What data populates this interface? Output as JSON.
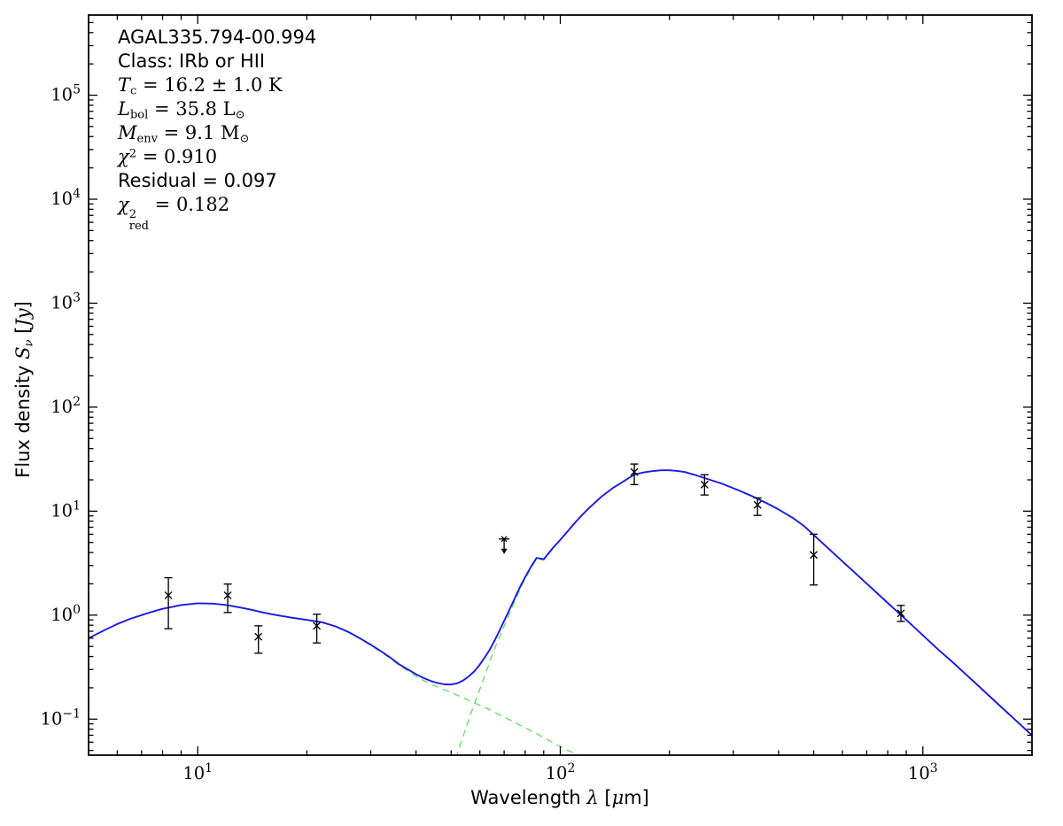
{
  "figure": {
    "background": "#ffffff",
    "frame_color": "#000000",
    "annotation_lines": [
      [
        {
          "t": "AGAL335.794-00.994",
          "c": "sans"
        }
      ],
      [
        {
          "t": "Class: IRb or HII",
          "c": "sans"
        }
      ],
      [
        {
          "t": "T",
          "c": "mi"
        },
        {
          "t": "c",
          "c": "msub"
        },
        {
          "t": " = 16.2 ± 1.0 K",
          "c": "mr"
        }
      ],
      [
        {
          "t": "L",
          "c": "mi"
        },
        {
          "t": "bol",
          "c": "msub"
        },
        {
          "t": " = 35.8 L",
          "c": "mr"
        },
        {
          "t": "⊙",
          "c": "msub"
        }
      ],
      [
        {
          "t": "M",
          "c": "mi"
        },
        {
          "t": "env",
          "c": "msub"
        },
        {
          "t": " = 9.1 M",
          "c": "mr"
        },
        {
          "t": "⊙",
          "c": "msub"
        }
      ],
      [
        {
          "t": "χ",
          "c": "mi"
        },
        {
          "t": "2",
          "c": "msup"
        },
        {
          "t": " = 0.910",
          "c": "mr"
        }
      ],
      [
        {
          "t": "Residual = 0.097",
          "c": "sans"
        }
      ],
      [
        {
          "t": "χ",
          "c": "mi"
        },
        {
          "sup": "2",
          "sub": "red",
          "c": "mstack"
        },
        {
          "t": " = 0.182",
          "c": "mr"
        }
      ]
    ],
    "x_axis": {
      "label_parts": [
        {
          "t": "Wavelength ",
          "c": "sans"
        },
        {
          "t": "λ",
          "c": "mi"
        },
        {
          "t": " [",
          "c": "sans"
        },
        {
          "t": "μ",
          "c": "mi"
        },
        {
          "t": "m]",
          "c": "sans"
        }
      ],
      "major_tick_exponents": [
        1,
        2,
        3
      ]
    },
    "y_axis": {
      "label_parts": [
        {
          "t": "Flux density ",
          "c": "sans"
        },
        {
          "t": "S",
          "c": "mi"
        },
        {
          "t": "ν",
          "c": "msubi"
        },
        {
          "t": " [",
          "c": "sans"
        },
        {
          "t": "Jy",
          "c": "mi"
        },
        {
          "t": "]",
          "c": "sans"
        }
      ],
      "major_tick_exponents": [
        -1,
        0,
        1,
        2,
        3,
        4,
        5
      ]
    }
  },
  "chart_data": {
    "type": "line",
    "title": "AGAL335.794-00.994",
    "xlabel": "Wavelength λ [μm]",
    "ylabel": "Flux density S_ν [Jy]",
    "xscale": "log",
    "yscale": "log",
    "xlim": [
      5,
      2000
    ],
    "ylim": [
      0.045,
      590000
    ],
    "grid": false,
    "legend": false,
    "annotations": [
      "AGAL335.794-00.994",
      "Class: IRb or HII",
      "T_c = 16.2 ± 1.0 K",
      "L_bol = 35.8 L⊙",
      "M_env = 9.1 M⊙",
      "χ² = 0.910",
      "Residual = 0.097",
      "χ²_red = 0.182"
    ],
    "series": [
      {
        "name": "warm-component-fit",
        "color": "#5ce05c",
        "style": "dashed",
        "width": 1.3,
        "points": [
          [
            5,
            0.6
          ],
          [
            5.5,
            0.71
          ],
          [
            6,
            0.82
          ],
          [
            6.5,
            0.92
          ],
          [
            7,
            1.0
          ],
          [
            7.5,
            1.08
          ],
          [
            8,
            1.15
          ],
          [
            9,
            1.25
          ],
          [
            10,
            1.295
          ],
          [
            11,
            1.285
          ],
          [
            12,
            1.245
          ],
          [
            13,
            1.185
          ],
          [
            14,
            1.125
          ],
          [
            15,
            1.065
          ],
          [
            16,
            1.015
          ],
          [
            18,
            0.945
          ],
          [
            20,
            0.893
          ],
          [
            22,
            0.848
          ],
          [
            24,
            0.773
          ],
          [
            26,
            0.682
          ],
          [
            28,
            0.592
          ],
          [
            30,
            0.512
          ],
          [
            32,
            0.442
          ],
          [
            34,
            0.382
          ],
          [
            36,
            0.327
          ],
          [
            38,
            0.291
          ],
          [
            40,
            0.258
          ],
          [
            42,
            0.235
          ],
          [
            44,
            0.217
          ],
          [
            46,
            0.203
          ],
          [
            48,
            0.191
          ],
          [
            50,
            0.18
          ],
          [
            52,
            0.17
          ],
          [
            54,
            0.16
          ],
          [
            56,
            0.151
          ],
          [
            58,
            0.143
          ],
          [
            60,
            0.136
          ],
          [
            63,
            0.126
          ],
          [
            66,
            0.116
          ],
          [
            70,
            0.105
          ],
          [
            74,
            0.095
          ],
          [
            78,
            0.0865
          ],
          [
            82,
            0.079
          ],
          [
            86,
            0.0725
          ],
          [
            90,
            0.0665
          ],
          [
            95,
            0.06
          ],
          [
            100,
            0.0545
          ],
          [
            105,
            0.05
          ],
          [
            110,
            0.0465
          ],
          [
            115,
            0.0435
          ],
          [
            120,
            0.041
          ]
        ]
      },
      {
        "name": "cold-component-fit",
        "color": "#5ce05c",
        "style": "dashed",
        "width": 1.3,
        "points": [
          [
            51.5,
            0.042
          ],
          [
            53,
            0.057
          ],
          [
            54.5,
            0.076
          ],
          [
            56,
            0.1
          ],
          [
            57.5,
            0.13
          ],
          [
            59,
            0.165
          ],
          [
            60.5,
            0.21
          ],
          [
            62,
            0.265
          ],
          [
            64,
            0.36
          ],
          [
            66,
            0.48
          ],
          [
            68,
            0.62
          ],
          [
            70,
            0.78
          ],
          [
            72,
            0.98
          ],
          [
            74,
            1.23
          ],
          [
            76,
            1.52
          ],
          [
            78,
            1.87
          ],
          [
            80,
            2.22
          ],
          [
            83,
            2.83
          ],
          [
            86,
            3.46
          ],
          [
            90,
            3.38
          ],
          [
            95,
            4.27
          ],
          [
            100,
            5.25
          ],
          [
            105,
            6.4
          ],
          [
            110,
            7.75
          ],
          [
            115,
            9.15
          ],
          [
            120,
            10.65
          ],
          [
            130,
            13.75
          ],
          [
            140,
            16.75
          ],
          [
            150,
            19.45
          ],
          [
            160,
            22.45
          ],
          [
            170,
            23.55
          ],
          [
            180,
            24.25
          ],
          [
            190,
            24.65
          ],
          [
            200,
            24.65
          ],
          [
            210,
            24.35
          ],
          [
            220,
            23.75
          ],
          [
            235,
            22.25
          ],
          [
            250,
            20.75
          ],
          [
            280,
            18.25
          ],
          [
            310,
            15.85
          ],
          [
            340,
            13.75
          ],
          [
            370,
            11.95
          ],
          [
            400,
            10.35
          ],
          [
            440,
            8.45
          ],
          [
            470,
            7.15
          ],
          [
            500,
            5.85
          ],
          [
            550,
            4.33
          ],
          [
            600,
            3.28
          ],
          [
            650,
            2.53
          ],
          [
            700,
            1.99
          ],
          [
            750,
            1.6
          ],
          [
            800,
            1.3
          ],
          [
            850,
            1.07
          ],
          [
            900,
            0.895
          ],
          [
            1000,
            0.638
          ],
          [
            1100,
            0.468
          ],
          [
            1200,
            0.358
          ],
          [
            1400,
            0.219
          ],
          [
            1600,
            0.142
          ],
          [
            1800,
            0.097
          ],
          [
            2000,
            0.069
          ]
        ]
      },
      {
        "name": "total-fit",
        "color": "#1a1ae0",
        "style": "solid",
        "width": 1.9,
        "points": [
          [
            5,
            0.6
          ],
          [
            5.5,
            0.71
          ],
          [
            6,
            0.82
          ],
          [
            6.5,
            0.92
          ],
          [
            7,
            1.0
          ],
          [
            7.5,
            1.08
          ],
          [
            8,
            1.15
          ],
          [
            9,
            1.25
          ],
          [
            10,
            1.3
          ],
          [
            11,
            1.29
          ],
          [
            12,
            1.25
          ],
          [
            13,
            1.19
          ],
          [
            14,
            1.13
          ],
          [
            15,
            1.07
          ],
          [
            16,
            1.02
          ],
          [
            18,
            0.95
          ],
          [
            20,
            0.9
          ],
          [
            22,
            0.855
          ],
          [
            24,
            0.78
          ],
          [
            26,
            0.69
          ],
          [
            28,
            0.6
          ],
          [
            30,
            0.52
          ],
          [
            32,
            0.45
          ],
          [
            34,
            0.39
          ],
          [
            36,
            0.335
          ],
          [
            38,
            0.3
          ],
          [
            40,
            0.27
          ],
          [
            42,
            0.248
          ],
          [
            44,
            0.232
          ],
          [
            46,
            0.222
          ],
          [
            48,
            0.216
          ],
          [
            50,
            0.215
          ],
          [
            52,
            0.221
          ],
          [
            54,
            0.236
          ],
          [
            56,
            0.258
          ],
          [
            58,
            0.29
          ],
          [
            60,
            0.335
          ],
          [
            62,
            0.395
          ],
          [
            64,
            0.47
          ],
          [
            66,
            0.575
          ],
          [
            68,
            0.71
          ],
          [
            70,
            0.88
          ],
          [
            72,
            1.08
          ],
          [
            74,
            1.33
          ],
          [
            76,
            1.62
          ],
          [
            78,
            1.96
          ],
          [
            80,
            2.31
          ],
          [
            83,
            2.92
          ],
          [
            86,
            3.55
          ],
          [
            90,
            3.45
          ],
          [
            95,
            4.35
          ],
          [
            100,
            5.3
          ],
          [
            105,
            6.45
          ],
          [
            110,
            7.8
          ],
          [
            115,
            9.2
          ],
          [
            120,
            10.7
          ],
          [
            125,
            12.2
          ],
          [
            130,
            13.8
          ],
          [
            140,
            16.8
          ],
          [
            150,
            19.5
          ],
          [
            160,
            22.5
          ],
          [
            170,
            23.6
          ],
          [
            180,
            24.3
          ],
          [
            190,
            24.7
          ],
          [
            200,
            24.7
          ],
          [
            210,
            24.4
          ],
          [
            220,
            23.8
          ],
          [
            235,
            22.3
          ],
          [
            250,
            20.8
          ],
          [
            280,
            18.3
          ],
          [
            310,
            15.9
          ],
          [
            340,
            13.8
          ],
          [
            370,
            12.0
          ],
          [
            400,
            10.4
          ],
          [
            440,
            8.5
          ],
          [
            470,
            7.2
          ],
          [
            500,
            5.9
          ],
          [
            550,
            4.35
          ],
          [
            600,
            3.29
          ],
          [
            650,
            2.55
          ],
          [
            700,
            2.01
          ],
          [
            750,
            1.61
          ],
          [
            800,
            1.31
          ],
          [
            850,
            1.08
          ],
          [
            900,
            0.9
          ],
          [
            1000,
            0.64
          ],
          [
            1100,
            0.47
          ],
          [
            1200,
            0.36
          ],
          [
            1400,
            0.22
          ],
          [
            1600,
            0.143
          ],
          [
            1800,
            0.098
          ],
          [
            2000,
            0.07
          ]
        ]
      }
    ],
    "data_points": [
      {
        "wavelength": 8.3,
        "flux": 1.55,
        "flux_min": 0.74,
        "flux_max": 2.29
      },
      {
        "wavelength": 12.1,
        "flux": 1.55,
        "flux_min": 1.06,
        "flux_max": 1.99
      },
      {
        "wavelength": 14.7,
        "flux": 0.62,
        "flux_min": 0.43,
        "flux_max": 0.79
      },
      {
        "wavelength": 21.3,
        "flux": 0.79,
        "flux_min": 0.54,
        "flux_max": 1.02
      },
      {
        "wavelength": 160,
        "flux": 23.8,
        "flux_min": 18.0,
        "flux_max": 28.4
      },
      {
        "wavelength": 250,
        "flux": 18.0,
        "flux_min": 14.3,
        "flux_max": 22.4
      },
      {
        "wavelength": 350,
        "flux": 11.5,
        "flux_min": 9.1,
        "flux_max": 13.4
      },
      {
        "wavelength": 500,
        "flux": 3.8,
        "flux_min": 1.95,
        "flux_max": 6.0
      },
      {
        "wavelength": 870,
        "flux": 1.04,
        "flux_min": 0.87,
        "flux_max": 1.24
      }
    ],
    "upper_limits": [
      {
        "wavelength": 70,
        "flux": 5.4
      }
    ],
    "marker": "x",
    "marker_color": "#000000"
  }
}
